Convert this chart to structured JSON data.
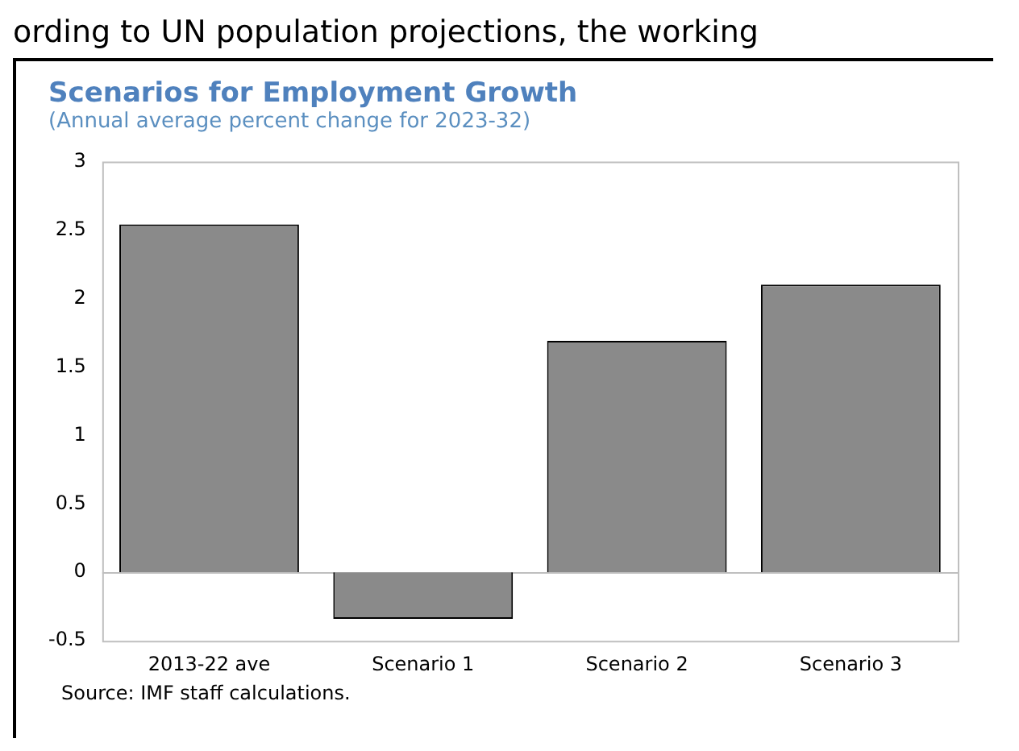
{
  "chart_data": {
    "type": "bar",
    "title": "Scenarios for Employment Growth",
    "subtitle": "(Annual average percent change for 2023-32)",
    "categories": [
      "2013-22 ave",
      "Scenario 1",
      "Scenario 2",
      "Scenario 3"
    ],
    "values": [
      2.54,
      -0.34,
      1.69,
      2.1
    ],
    "color": "#8a8a8a",
    "ylim": [
      -0.5,
      3
    ],
    "yticks": [
      -0.5,
      0,
      0.5,
      1,
      1.5,
      2,
      2.5,
      3
    ],
    "grid": false,
    "legend": false,
    "ref_lines": [
      {
        "axis": "y",
        "value": 0,
        "color": "#bfbfbf"
      }
    ],
    "annotations": [
      "ording to UN population projections, the working",
      "Source: IMF staff calculations."
    ]
  }
}
